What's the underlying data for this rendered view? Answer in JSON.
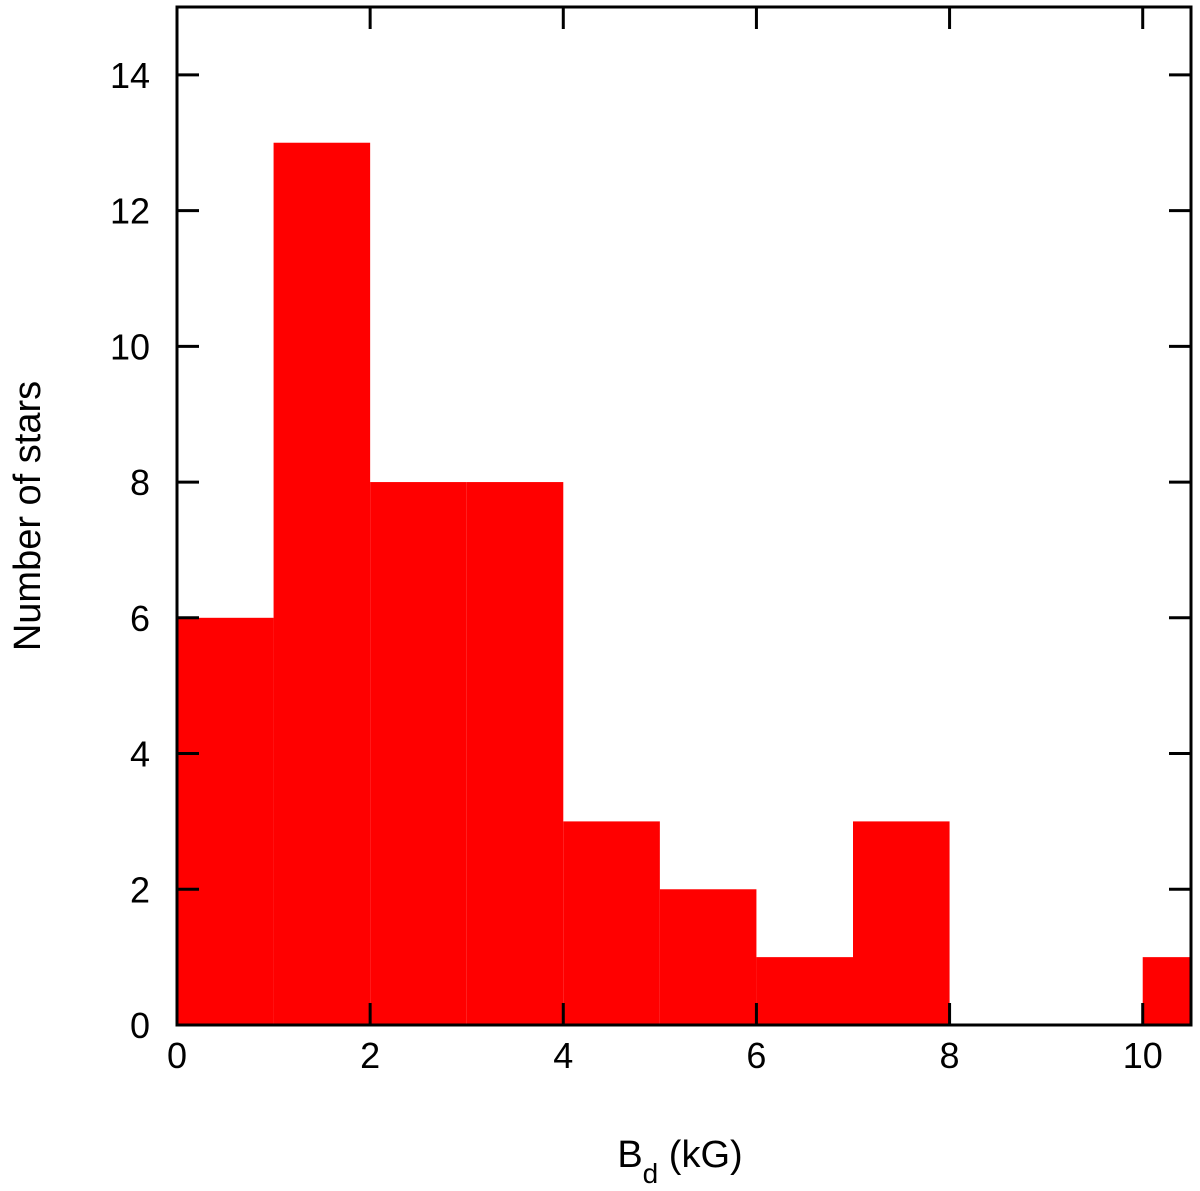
{
  "chart_data": {
    "type": "bar",
    "title": "",
    "xlabel": "B",
    "xlabel_subscript": "d",
    "xlabel_suffix": " (kG)",
    "ylabel": "Number of stars",
    "bins": [
      {
        "x0": 0,
        "x1": 1,
        "value": 6
      },
      {
        "x0": 1,
        "x1": 2,
        "value": 13
      },
      {
        "x0": 2,
        "x1": 3,
        "value": 8
      },
      {
        "x0": 3,
        "x1": 4,
        "value": 8
      },
      {
        "x0": 4,
        "x1": 5,
        "value": 3
      },
      {
        "x0": 5,
        "x1": 6,
        "value": 2
      },
      {
        "x0": 6,
        "x1": 7,
        "value": 1
      },
      {
        "x0": 7,
        "x1": 8,
        "value": 3
      },
      {
        "x0": 8,
        "x1": 9,
        "value": 0
      },
      {
        "x0": 9,
        "x1": 10,
        "value": 0
      },
      {
        "x0": 10,
        "x1": 11,
        "value": 1
      }
    ],
    "xlim": [
      0,
      10.5
    ],
    "ylim": [
      0,
      15
    ],
    "xticks": [
      0,
      2,
      4,
      6,
      8,
      10
    ],
    "xtick_labels": [
      "0",
      "2",
      "4",
      "6",
      "8",
      "10"
    ],
    "yticks": [
      0,
      2,
      4,
      6,
      8,
      10,
      12,
      14
    ],
    "ytick_labels": [
      "0",
      "2",
      "4",
      "6",
      "8",
      "10",
      "12",
      "14"
    ],
    "grid": false,
    "bar_color": "#ff0000"
  }
}
